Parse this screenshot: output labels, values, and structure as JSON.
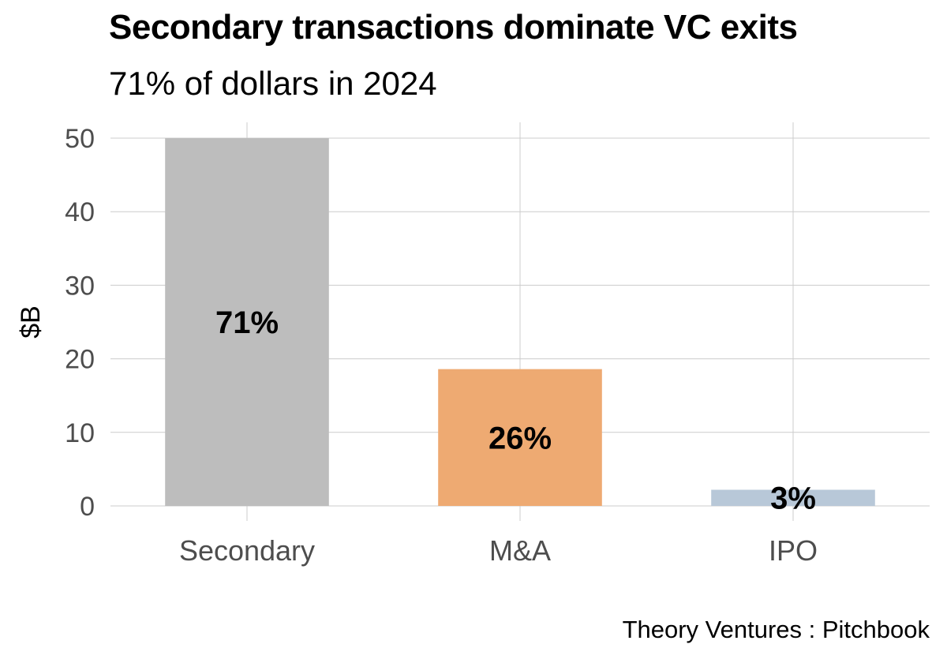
{
  "chart_data": {
    "type": "bar",
    "title": "Secondary transactions dominate VC exits",
    "subtitle": "71% of dollars in 2024",
    "xlabel": "",
    "ylabel": "$B",
    "ylim": [
      0,
      50
    ],
    "yticks": [
      0,
      10,
      20,
      30,
      40,
      50
    ],
    "grid": true,
    "categories": [
      "Secondary",
      "M&A",
      "IPO"
    ],
    "values": [
      50,
      18.6,
      2.2
    ],
    "data_labels": [
      "71%",
      "26%",
      "3%"
    ],
    "colors": [
      "#bdbdbd",
      "#eeaa72",
      "#b8c8d8"
    ],
    "source": "Theory Ventures : Pitchbook"
  }
}
